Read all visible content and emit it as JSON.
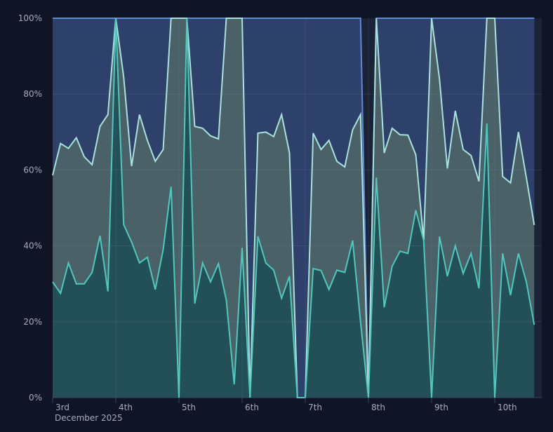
{
  "chart_data": {
    "type": "area",
    "stacked": "percent",
    "x_start": "2025-12-03 00:00",
    "x_interval_hours": 3,
    "x_ticks": [
      {
        "label": "3rd",
        "x": "2025-12-03"
      },
      {
        "label": "4th",
        "x": "2025-12-04"
      },
      {
        "label": "5th",
        "x": "2025-12-05"
      },
      {
        "label": "6th",
        "x": "2025-12-06"
      },
      {
        "label": "7th",
        "x": "2025-12-07"
      },
      {
        "label": "8th",
        "x": "2025-12-08"
      },
      {
        "label": "9th",
        "x": "2025-12-09"
      },
      {
        "label": "10th",
        "x": "2025-12-10"
      }
    ],
    "x_sublabel": "December 2025",
    "y_ticks": [
      "0%",
      "20%",
      "40%",
      "60%",
      "80%",
      "100%"
    ],
    "ylim": [
      0,
      100
    ],
    "grid": true,
    "legend": "none",
    "series": [
      {
        "color": "#4fc9bd",
        "fill": "#234f57",
        "values": [
          30.5,
          27.5,
          35.5,
          30,
          30,
          33,
          42.7,
          28,
          100,
          45.6,
          41,
          35.5,
          37,
          28.5,
          39,
          55.6,
          0,
          100,
          24.8,
          35.5,
          30.5,
          35.3,
          25.7,
          3.5,
          39.5,
          0,
          42.5,
          35.5,
          33.6,
          26.2,
          32,
          0,
          0,
          34,
          33.5,
          28.5,
          33.6,
          33,
          41.4,
          20,
          0,
          58,
          23.8,
          34.6,
          38.6,
          38,
          49.4,
          41.4,
          0,
          42.5,
          32,
          40,
          32.7,
          38,
          28.8,
          72.3,
          0,
          38,
          27,
          38,
          30.5,
          19.2
        ]
      },
      {
        "color": "#a9e2dd",
        "fill": "#4a6167",
        "values": [
          28.1,
          39.5,
          30.2,
          38.5,
          33.5,
          28.4,
          28.8,
          46.6,
          0,
          38.9,
          20,
          39.1,
          30.8,
          33.8,
          26.4,
          44.4,
          100,
          0,
          46.7,
          35.5,
          38.5,
          32.9,
          74.3,
          96.5,
          60.5,
          0,
          27.2,
          34.5,
          35.2,
          48.4,
          32.5,
          0,
          0,
          35.7,
          31.9,
          39.3,
          28.7,
          27.8,
          29.2,
          54.6,
          0,
          42,
          40.7,
          36.4,
          30.7,
          31.2,
          14.6,
          0,
          100,
          41.5,
          28.4,
          35.6,
          32.7,
          25.8,
          28.2,
          27.7,
          100,
          20.3,
          29.6,
          32,
          27.5,
          26.3
        ]
      },
      {
        "color": "#5f88d8",
        "fill": "#2e416a",
        "values": [
          41.4,
          33,
          34.3,
          31.5,
          36.5,
          38.6,
          28.5,
          25.4,
          0,
          15.5,
          39,
          25.4,
          32.2,
          37.7,
          34.6,
          0,
          0,
          0,
          28.5,
          29,
          31,
          31.8,
          0,
          0,
          0,
          100,
          30.3,
          30,
          31.2,
          25.4,
          35.5,
          100,
          100,
          30.3,
          34.6,
          32.2,
          37.7,
          39.2,
          29.4,
          25.4,
          0,
          0,
          35.5,
          29,
          30.7,
          30.8,
          36,
          58.6,
          0,
          16,
          39.6,
          24.4,
          34.6,
          36.2,
          43,
          0,
          0,
          41.7,
          43.4,
          30,
          42,
          54.5
        ]
      }
    ]
  }
}
